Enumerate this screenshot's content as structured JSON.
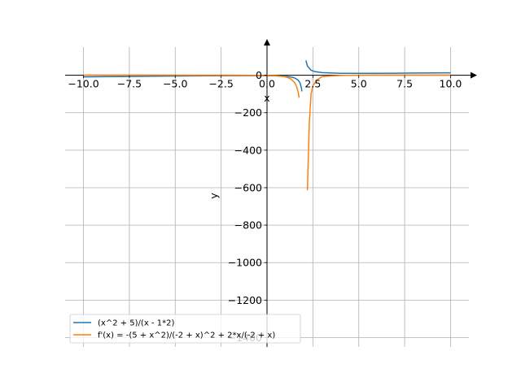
{
  "chart_data": {
    "type": "line",
    "xlabel": "x",
    "ylabel": "y",
    "xlim": [
      -11,
      11
    ],
    "ylim": [
      -1450,
      150
    ],
    "xticks": [
      -10.0,
      -7.5,
      -5.0,
      -2.5,
      0.0,
      2.5,
      5.0,
      7.5,
      10.0
    ],
    "xtick_labels": [
      "−10.0",
      "−7.5",
      "−5.0",
      "−2.5",
      "0.0",
      "2.5",
      "5.0",
      "7.5",
      "10.0"
    ],
    "yticks": [
      0,
      -200,
      -400,
      -600,
      -800,
      -1000,
      -1200,
      -1400
    ],
    "ytick_labels": [
      "0",
      "−200",
      "−400",
      "−600",
      "−800",
      "−1000",
      "−1200",
      "−1400"
    ],
    "grid": true,
    "legend_position": "bottom-left",
    "series": [
      {
        "name": "(x^2 + 5)/(x - 1*2)",
        "color": "#1f77b4",
        "segments": [
          [
            [
              -10,
              -8.75
            ],
            [
              -8,
              -6.9
            ],
            [
              -6,
              -5.1
            ],
            [
              -4,
              -3.5
            ],
            [
              -3,
              -2.8
            ],
            [
              -2,
              -2.25
            ],
            [
              -1,
              -2.0
            ],
            [
              -0.5,
              -2.1
            ],
            [
              0,
              -2.5
            ],
            [
              0.5,
              -3.5
            ],
            [
              1.0,
              -6.0
            ],
            [
              1.3,
              -9.6
            ],
            [
              1.5,
              -14.5
            ],
            [
              1.7,
              -26.0
            ],
            [
              1.8,
              -41.2
            ],
            [
              1.88,
              -71.0
            ],
            [
              1.9,
              -86.1
            ]
          ],
          [
            [
              2.12,
              79.1
            ],
            [
              2.2,
              49.2
            ],
            [
              2.4,
              26.9
            ],
            [
              2.6,
              19.6
            ],
            [
              3.0,
              14.0
            ],
            [
              4.0,
              10.5
            ],
            [
              5.0,
              10.0
            ],
            [
              6.0,
              10.25
            ],
            [
              7.0,
              10.8
            ],
            [
              8.0,
              11.5
            ],
            [
              9.0,
              12.3
            ],
            [
              10.0,
              13.1
            ]
          ]
        ]
      },
      {
        "name": "f'(x) = -(5 + x^2)/(-2 + x)^2 + 2*x/(-2 + x)",
        "color": "#ff7f0e",
        "segments": [
          [
            [
              -10,
              0.87
            ],
            [
              -8,
              0.85
            ],
            [
              -6,
              0.8
            ],
            [
              -4,
              0.62
            ],
            [
              -2,
              0.44
            ],
            [
              -1,
              0.0
            ],
            [
              0,
              -1.25
            ],
            [
              0.5,
              -2.9
            ],
            [
              1.0,
              -8.0
            ],
            [
              1.3,
              -20.0
            ],
            [
              1.5,
              -38.0
            ],
            [
              1.6,
              -57.0
            ],
            [
              1.7,
              -91.0
            ],
            [
              1.75,
              -120.0
            ]
          ],
          [
            [
              2.2,
              -614
            ],
            [
              2.3,
              -260
            ],
            [
              2.4,
              -100
            ],
            [
              2.5,
              -56
            ],
            [
              2.7,
              -26
            ],
            [
              3.0,
              -8
            ],
            [
              3.5,
              -4
            ],
            [
              4.0,
              -1.25
            ],
            [
              5.0,
              0.44
            ],
            [
              6.0,
              0.69
            ],
            [
              7.0,
              0.8
            ],
            [
              8.0,
              0.86
            ],
            [
              9.0,
              0.9
            ],
            [
              10.0,
              0.92
            ]
          ]
        ]
      }
    ]
  }
}
